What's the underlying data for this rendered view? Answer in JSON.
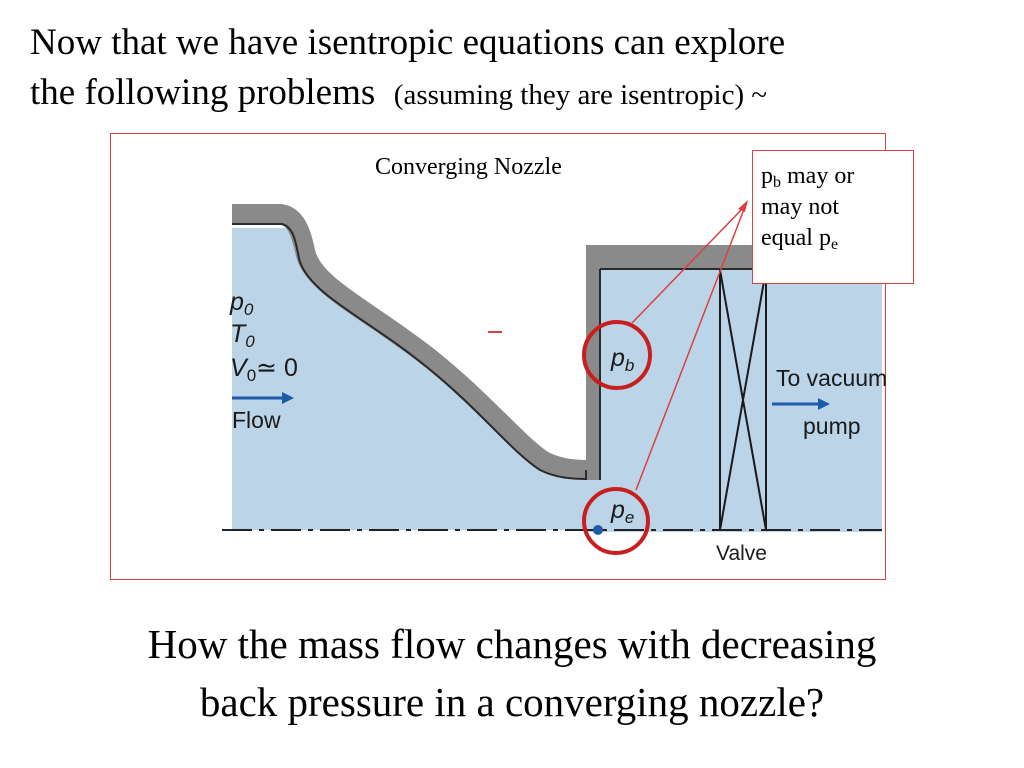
{
  "title": {
    "line1": "Now that we have isentropic equations can explore",
    "line2": "the following problems",
    "line2_sub": "(assuming they are isentropic) ~"
  },
  "figure": {
    "caption": "Converging Nozzle",
    "inlet_labels": {
      "p": "p",
      "p_sub": "0",
      "t": "T",
      "t_sub": "0",
      "v": "V",
      "v_sub": "0",
      "v_rel": "≃ 0"
    },
    "flow_label": "Flow",
    "pb_label": {
      "base": "p",
      "sub": "b"
    },
    "pe_label": {
      "base": "p",
      "sub": "e"
    },
    "vacuum_label": {
      "line1": "To vacuum",
      "line2": "pump"
    },
    "valve_label": "Valve",
    "colors": {
      "fluid": "#bcd4e8",
      "wall": "#8a8a8a",
      "circle": "#c81e1e",
      "arrow": "#1d5aa8",
      "callout_line": "#d94040"
    }
  },
  "callout": {
    "line1_base": "p",
    "line1_sub": "b",
    "line1_rest": " may or",
    "line2": "may not",
    "line3_base": "equal p",
    "line3_sub": "e"
  },
  "question": {
    "line1": "How the mass flow changes with decreasing",
    "line2": "back pressure in a converging nozzle?"
  }
}
